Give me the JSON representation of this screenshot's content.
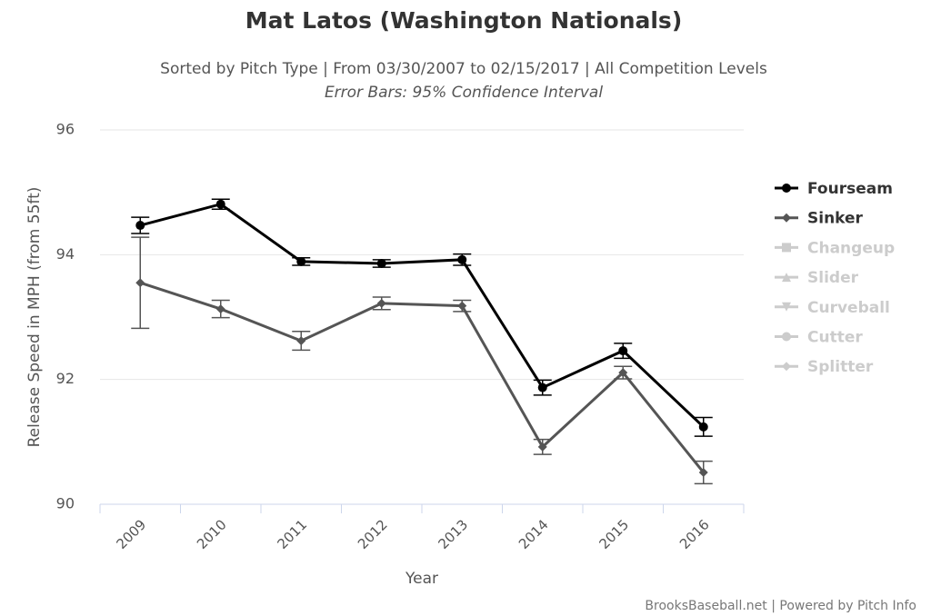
{
  "chart_data": {
    "type": "line",
    "title": "Mat Latos (Washington Nationals)",
    "subtitle": "Sorted by Pitch Type | From 03/30/2007 to 02/15/2017 | All Competition Levels",
    "subtitle2": "Error Bars: 95% Confidence Interval",
    "xlabel": "Year",
    "ylabel": "Release Speed in MPH (from 55ft)",
    "credits": "BrooksBaseball.net | Powered by Pitch Info",
    "categories": [
      "2009",
      "2010",
      "2011",
      "2012",
      "2013",
      "2014",
      "2015",
      "2016"
    ],
    "ylim": [
      90,
      96
    ],
    "yticks": [
      90,
      92,
      94,
      96
    ],
    "grid": true,
    "legend": "right",
    "series": [
      {
        "name": "Fourseam",
        "color": "#000000",
        "marker": "circle",
        "visible": true,
        "values": [
          94.47,
          94.81,
          93.89,
          93.86,
          93.92,
          91.87,
          92.46,
          91.24
        ],
        "errors": [
          0.13,
          0.08,
          0.06,
          0.06,
          0.09,
          0.12,
          0.12,
          0.15
        ]
      },
      {
        "name": "Sinker",
        "color": "#555555",
        "marker": "diamond",
        "visible": true,
        "values": [
          93.55,
          93.13,
          92.62,
          93.22,
          93.18,
          90.92,
          92.11,
          90.51
        ],
        "errors": [
          0.73,
          0.14,
          0.15,
          0.1,
          0.09,
          0.12,
          0.1,
          0.18
        ]
      },
      {
        "name": "Changeup",
        "color": "#cccccc",
        "marker": "square",
        "visible": false,
        "values": [
          null,
          null,
          null,
          null,
          null,
          null,
          null,
          null
        ]
      },
      {
        "name": "Slider",
        "color": "#cccccc",
        "marker": "triangle",
        "visible": false,
        "values": [
          null,
          null,
          null,
          null,
          null,
          null,
          null,
          null
        ]
      },
      {
        "name": "Curveball",
        "color": "#cccccc",
        "marker": "triangle-down",
        "visible": false,
        "values": [
          null,
          null,
          null,
          null,
          null,
          null,
          null,
          null
        ]
      },
      {
        "name": "Cutter",
        "color": "#cccccc",
        "marker": "circle",
        "visible": false,
        "values": [
          null,
          null,
          null,
          null,
          null,
          null,
          null,
          null
        ]
      },
      {
        "name": "Splitter",
        "color": "#cccccc",
        "marker": "diamond",
        "visible": false,
        "values": [
          null,
          null,
          null,
          null,
          null,
          null,
          null,
          null
        ]
      }
    ]
  }
}
